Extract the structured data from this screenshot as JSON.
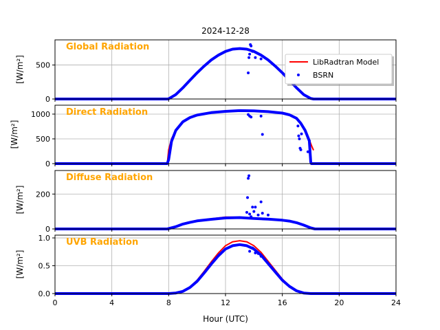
{
  "figure": {
    "title": "2024-12-28",
    "xlabel": "Hour (UTC)",
    "legend": {
      "placement": "top-right of first panel",
      "model_label": "LibRadtran Model",
      "obs_label": "BSRN"
    }
  },
  "colors": {
    "model": "#ff0000",
    "obs": "#0000ff",
    "panel_title": "#ffa500",
    "grid": "#b0b0b0"
  },
  "chart_data": [
    {
      "type": "line",
      "title": "Global Radiation",
      "ylabel": "[W/m²]",
      "xlim": [
        0,
        24
      ],
      "ylim": [
        0,
        870
      ],
      "xticks": [
        0,
        4,
        8,
        12,
        16,
        20,
        24
      ],
      "yticks": [
        0,
        500
      ],
      "grid": true,
      "series": [
        {
          "name": "LibRadtran Model",
          "x": [
            0,
            7.9,
            8.0,
            8.5,
            9,
            9.5,
            10,
            10.5,
            11,
            11.5,
            12,
            12.5,
            13,
            13.5,
            14,
            14.5,
            15,
            15.5,
            16,
            16.5,
            17,
            17.5,
            18,
            18.2,
            18.3,
            24
          ],
          "y": [
            0,
            0,
            5,
            70,
            170,
            280,
            390,
            490,
            580,
            650,
            705,
            738,
            748,
            738,
            705,
            650,
            580,
            490,
            390,
            280,
            170,
            70,
            10,
            0,
            0,
            0
          ]
        },
        {
          "name": "BSRN",
          "x": [
            0,
            7.9,
            8.0,
            8.5,
            9,
            9.5,
            10,
            10.5,
            11,
            11.5,
            12,
            12.5,
            13,
            13.5,
            14,
            14.5,
            15,
            15.5,
            16,
            16.5,
            17,
            17.5,
            18,
            18.2,
            18.3,
            24
          ],
          "y": [
            0,
            0,
            3,
            65,
            165,
            275,
            385,
            485,
            575,
            645,
            700,
            733,
            743,
            733,
            700,
            645,
            575,
            485,
            385,
            275,
            165,
            65,
            8,
            0,
            0,
            0
          ]
        }
      ],
      "scatter_extra": {
        "x": [
          13.6,
          13.65,
          13.7,
          13.75,
          13.8,
          13.9,
          14.1,
          14.5
        ],
        "y": [
          385,
          610,
          660,
          800,
          780,
          700,
          610,
          590
        ]
      }
    },
    {
      "type": "line",
      "title": "Direct Radiation",
      "ylabel": "[W/m²]",
      "xlim": [
        0,
        24
      ],
      "ylim": [
        0,
        1180
      ],
      "xticks": [
        0,
        4,
        8,
        12,
        16,
        20,
        24
      ],
      "yticks": [
        0,
        500,
        1000
      ],
      "grid": true,
      "series": [
        {
          "name": "LibRadtran Model",
          "x": [
            0,
            7.9,
            8.0,
            8.2,
            8.5,
            9,
            9.5,
            10,
            11,
            12,
            13,
            14,
            15,
            16,
            16.5,
            17,
            17.3,
            17.6,
            17.9,
            18.1,
            18.2
          ],
          "y": [
            0,
            0,
            280,
            500,
            680,
            850,
            935,
            985,
            1035,
            1060,
            1075,
            1070,
            1055,
            1025,
            990,
            920,
            820,
            680,
            480,
            330,
            270
          ]
        },
        {
          "name": "BSRN",
          "x": [
            0,
            7.9,
            8.0,
            8.2,
            8.5,
            9,
            9.5,
            10,
            11,
            12,
            13,
            14,
            15,
            16,
            16.5,
            17,
            17.3,
            17.6,
            17.9,
            18.0,
            18.05,
            24
          ],
          "y": [
            0,
            0,
            80,
            450,
            670,
            845,
            930,
            980,
            1030,
            1055,
            1070,
            1065,
            1050,
            1020,
            985,
            915,
            815,
            675,
            460,
            30,
            0,
            0
          ]
        }
      ],
      "scatter_extra": {
        "x": [
          13.6,
          13.7,
          13.8,
          14.5,
          14.6,
          17.1,
          17.15,
          17.2,
          17.25,
          17.3,
          17.35,
          17.8,
          17.9
        ],
        "y": [
          990,
          960,
          940,
          960,
          590,
          760,
          560,
          500,
          310,
          280,
          600,
          240,
          460
        ]
      }
    },
    {
      "type": "line",
      "title": "Diffuse Radiation",
      "ylabel": "[W/m²]",
      "xlim": [
        0,
        24
      ],
      "ylim": [
        0,
        335
      ],
      "xticks": [
        0,
        4,
        8,
        12,
        16,
        20,
        24
      ],
      "yticks": [
        0,
        200
      ],
      "grid": true,
      "series": [
        {
          "name": "LibRadtran Model",
          "x": [
            0,
            7.9,
            8.0,
            8.5,
            9,
            9.5,
            10,
            11,
            12,
            13,
            14,
            15,
            16,
            16.5,
            17,
            17.5,
            18,
            18.3,
            24
          ],
          "y": [
            0,
            0,
            3,
            15,
            30,
            40,
            48,
            58,
            68,
            67,
            62,
            58,
            52,
            47,
            38,
            25,
            8,
            0,
            0
          ]
        },
        {
          "name": "BSRN",
          "x": [
            0,
            7.9,
            8.0,
            8.5,
            9,
            9.5,
            10,
            11,
            12,
            13,
            14,
            15,
            16,
            16.5,
            17,
            17.5,
            18,
            18.3,
            24
          ],
          "y": [
            0,
            0,
            2,
            13,
            28,
            38,
            46,
            55,
            63,
            65,
            60,
            56,
            50,
            45,
            36,
            22,
            6,
            0,
            0
          ]
        }
      ],
      "scatter_extra": {
        "x": [
          13.5,
          13.55,
          13.6,
          13.65,
          13.7,
          13.8,
          13.9,
          14.0,
          14.1,
          14.3,
          14.5,
          14.6,
          15.0
        ],
        "y": [
          95,
          180,
          290,
          305,
          85,
          70,
          125,
          100,
          125,
          80,
          155,
          90,
          80
        ]
      }
    },
    {
      "type": "line",
      "title": "UVB Radiation",
      "ylabel": "[W/m²]",
      "xlim": [
        0,
        24
      ],
      "ylim": [
        0,
        1.05
      ],
      "xticks": [
        0,
        4,
        8,
        12,
        16,
        20,
        24
      ],
      "yticks": [
        0.0,
        0.5,
        1.0
      ],
      "grid": true,
      "series": [
        {
          "name": "LibRadtran Model",
          "x": [
            0,
            8.0,
            8.5,
            9,
            9.5,
            10,
            10.5,
            11,
            11.5,
            12,
            12.5,
            13,
            13.5,
            14,
            14.5,
            15,
            15.5,
            16,
            16.5,
            17,
            17.5,
            18,
            18.3,
            24
          ],
          "y": [
            0,
            0,
            0.01,
            0.04,
            0.12,
            0.24,
            0.4,
            0.57,
            0.73,
            0.86,
            0.93,
            0.95,
            0.93,
            0.86,
            0.74,
            0.58,
            0.42,
            0.26,
            0.14,
            0.06,
            0.02,
            0.0,
            0,
            0
          ]
        },
        {
          "name": "BSRN",
          "x": [
            0,
            8.0,
            8.5,
            9,
            9.5,
            10,
            10.5,
            11,
            11.5,
            12,
            12.5,
            13,
            13.5,
            14,
            14.5,
            15,
            15.5,
            16,
            16.5,
            17,
            17.5,
            18,
            18.3,
            24
          ],
          "y": [
            0,
            0,
            0.01,
            0.04,
            0.11,
            0.22,
            0.37,
            0.53,
            0.68,
            0.8,
            0.86,
            0.88,
            0.86,
            0.8,
            0.69,
            0.54,
            0.39,
            0.24,
            0.13,
            0.05,
            0.01,
            0.0,
            0,
            0
          ]
        }
      ],
      "scatter_extra": {
        "x": [
          13.7,
          13.9,
          14.1,
          14.3,
          14.5
        ],
        "y": [
          0.76,
          0.82,
          0.73,
          0.72,
          0.67
        ]
      }
    }
  ]
}
